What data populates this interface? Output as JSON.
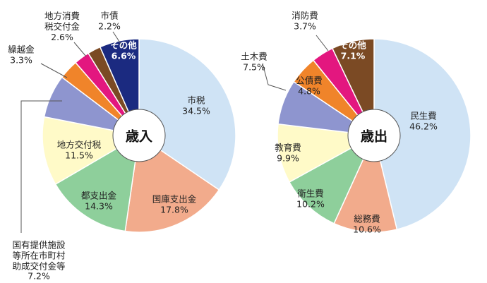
{
  "chart_data": [
    {
      "type": "pie",
      "title": "歳入",
      "categories": [
        "市税",
        "国庫支出金",
        "都支出金",
        "地方交付税",
        "国有提供施設\n等所在市町村\n助成交付金等",
        "繰越金",
        "地方消費\n税交付金",
        "市債",
        "その他"
      ],
      "values": [
        34.5,
        17.8,
        14.3,
        11.5,
        7.2,
        3.3,
        2.6,
        2.2,
        6.6
      ],
      "value_labels": [
        "34.5%",
        "17.8%",
        "14.3%",
        "11.5%",
        "7.2%",
        "3.3%",
        "2.6%",
        "2.2%",
        "6.6%"
      ],
      "colors": [
        "#cfe3f5",
        "#f2ab8c",
        "#8ecf9b",
        "#fffac8",
        "#8e95cf",
        "#f0842a",
        "#e3177f",
        "#7b4a24",
        "#1b2a80"
      ]
    },
    {
      "type": "pie",
      "title": "歳出",
      "categories": [
        "民生費",
        "総務費",
        "衛生費",
        "教育費",
        "土木費",
        "公債費",
        "消防費",
        "その他"
      ],
      "values": [
        46.2,
        10.6,
        10.2,
        9.9,
        7.5,
        4.8,
        3.7,
        7.1
      ],
      "value_labels": [
        "46.2%",
        "10.6%",
        "10.2%",
        "9.9%",
        "7.5%",
        "4.8%",
        "3.7%",
        "7.1%"
      ],
      "colors": [
        "#cfe3f5",
        "#f2ab8c",
        "#8ecf9b",
        "#fffac8",
        "#8e95cf",
        "#f0842a",
        "#e3177f",
        "#7b4a24"
      ]
    }
  ]
}
